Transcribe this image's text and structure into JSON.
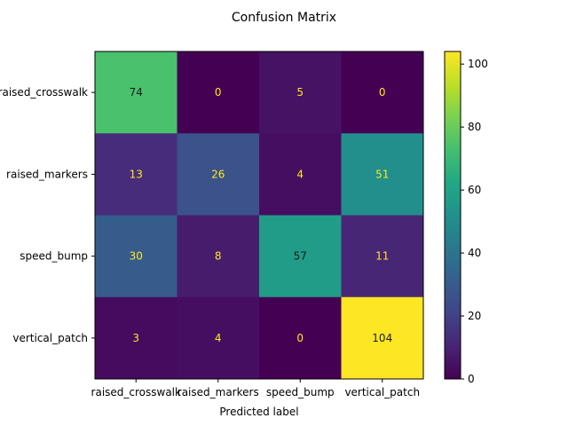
{
  "chart_data": {
    "type": "heatmap",
    "title": "Confusion Matrix",
    "xlabel": "Predicted label",
    "ylabel": "",
    "x_categories": [
      "raised_crosswalk",
      "raised_markers",
      "speed_bump",
      "vertical_patch"
    ],
    "y_categories": [
      "raised_crosswalk",
      "raised_markers",
      "speed_bump",
      "vertical_patch"
    ],
    "matrix": [
      [
        74,
        0,
        5,
        0
      ],
      [
        13,
        26,
        4,
        51
      ],
      [
        30,
        8,
        57,
        11
      ],
      [
        3,
        4,
        0,
        104
      ]
    ],
    "colorbar": {
      "min": 0,
      "max": 104,
      "ticks": [
        0,
        20,
        40,
        60,
        80,
        100
      ],
      "colormap": "viridis"
    },
    "text_colors": {
      "dark_cell": "#fde725",
      "light_cell": "#1a1a1a"
    }
  }
}
